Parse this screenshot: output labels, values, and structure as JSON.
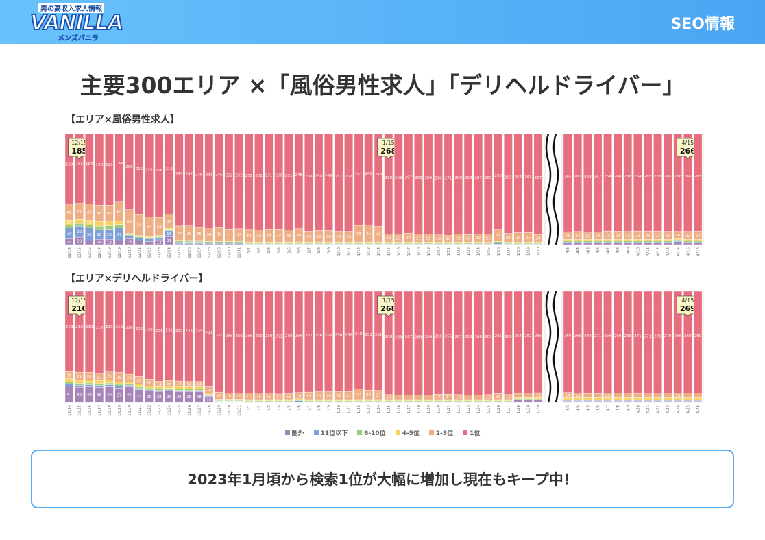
{
  "header": {
    "logo_tagline": "男の高収入求人情報",
    "logo_main": "VANILLA",
    "logo_sub": "メンズバニラ",
    "section": "SEO情報"
  },
  "title": "主要300エリア ×「風俗男性求人」「デリヘルドライバー」",
  "summary": "2023年1月頃から検索1位が大幅に増加し現在もキープ中！",
  "legend": [
    {
      "name": "圏外",
      "color": "#a784b8"
    },
    {
      "name": "11位以下",
      "color": "#7fa0d6"
    },
    {
      "name": "6-10位",
      "color": "#9fcb7c"
    },
    {
      "name": "4-5位",
      "color": "#f7d35e"
    },
    {
      "name": "2-3位",
      "color": "#eeaf86"
    },
    {
      "name": "1位",
      "color": "#e66e7e"
    }
  ],
  "chart_data": [
    {
      "type": "bar",
      "stacked": true,
      "title": "【エリア×風俗男性求人】",
      "grid": true,
      "categories_left": [
        "12/14",
        "12/15",
        "12/16",
        "12/17",
        "12/18",
        "12/19",
        "12/20",
        "12/21",
        "12/22",
        "12/23",
        "12/24",
        "12/25",
        "12/26",
        "12/27",
        "12/28",
        "12/29",
        "12/30",
        "12/31",
        "1/1",
        "1/2",
        "1/3",
        "1/4",
        "1/5",
        "1/6",
        "1/7",
        "1/8",
        "1/9",
        "1/10",
        "1/11",
        "1/12",
        "1/13",
        "1/14",
        "1/15",
        "1/16",
        "1/17",
        "1/18",
        "1/19",
        "1/20",
        "1/21",
        "1/22",
        "1/23",
        "1/24",
        "1/25",
        "1/26",
        "1/27",
        "1/28",
        "1/29",
        "1/30"
      ],
      "categories_right": [
        "4/3",
        "4/4",
        "4/5",
        "4/6",
        "4/7",
        "4/8",
        "4/9",
        "4/10",
        "4/11",
        "4/12",
        "4/13",
        "4/14",
        "4/15",
        "4/16"
      ],
      "series_left": [
        {
          "name": "圏外",
          "values": [
            15,
            20,
            10,
            14,
            13,
            11,
            16,
            10,
            8,
            13,
            21,
            2,
            2,
            2,
            2,
            2,
            2,
            2,
            1,
            1,
            1,
            1,
            1,
            1,
            1,
            1,
            1,
            1,
            1,
            1,
            1,
            1,
            1,
            1,
            1,
            1,
            1,
            1,
            1,
            1,
            1,
            1,
            1,
            1,
            1,
            1,
            1,
            1
          ]
        },
        {
          "name": "11位以下",
          "values": [
            30,
            29,
            35,
            26,
            28,
            37,
            8,
            8,
            8,
            6,
            16,
            5,
            4,
            4,
            3,
            3,
            2,
            2,
            1,
            1,
            1,
            1,
            1,
            1,
            1,
            1,
            1,
            1,
            1,
            1,
            1,
            1,
            1,
            1,
            1,
            1,
            1,
            1,
            1,
            1,
            1,
            1,
            1,
            4,
            1,
            1,
            1,
            1
          ]
        },
        {
          "name": "6-10位",
          "values": [
            7,
            7,
            7,
            9,
            9,
            9,
            3,
            3,
            3,
            3,
            3,
            3,
            3,
            3,
            3,
            3,
            4,
            4,
            3,
            3,
            3,
            3,
            3,
            3,
            3,
            3,
            3,
            3,
            3,
            3,
            3,
            3,
            3,
            3,
            3,
            3,
            3,
            3,
            3,
            3,
            3,
            3,
            3,
            3,
            3,
            3,
            3,
            3
          ]
        },
        {
          "name": "4-5位",
          "values": [
            13,
            11,
            13,
            12,
            12,
            10,
            3,
            3,
            3,
            3,
            3,
            3,
            2,
            2,
            2,
            2,
            2,
            2,
            2,
            2,
            2,
            2,
            2,
            2,
            2,
            2,
            2,
            2,
            2,
            2,
            2,
            2,
            2,
            2,
            2,
            2,
            2,
            2,
            2,
            2,
            2,
            2,
            2,
            2,
            2,
            2,
            2,
            2
          ]
        },
        {
          "name": "2-3位",
          "values": [
            41,
            43,
            43,
            44,
            43,
            54,
            65,
            56,
            53,
            49,
            37,
            39,
            38,
            35,
            34,
            36,
            31,
            32,
            33,
            32,
            34,
            34,
            32,
            36,
            28,
            30,
            30,
            28,
            28,
            43,
            45,
            41,
            22,
            21,
            24,
            21,
            21,
            19,
            18,
            21,
            20,
            22,
            21,
            31,
            23,
            25,
            25,
            20
          ]
        },
        {
          "name": "1位",
          "values": [
            189,
            185,
            187,
            190,
            190,
            194,
            205,
            215,
            223,
            226,
            213,
            259,
            242,
            246,
            247,
            245,
            252,
            252,
            251,
            251,
            251,
            250,
            251,
            246,
            256,
            254,
            256,
            257,
            257,
            241,
            240,
            243,
            268,
            269,
            267,
            268,
            269,
            270,
            271,
            268,
            268,
            267,
            268,
            256,
            265,
            264,
            263,
            267
          ]
        }
      ],
      "series_right": [
        {
          "name": "圏外",
          "values": [
            5,
            5,
            5,
            5,
            5,
            5,
            5,
            5,
            5,
            5,
            5,
            5,
            5,
            5
          ]
        },
        {
          "name": "11位以下",
          "values": [
            2,
            2,
            2,
            2,
            2,
            2,
            2,
            2,
            2,
            2,
            2,
            4,
            2,
            2
          ]
        },
        {
          "name": "6-10位",
          "values": [
            4,
            4,
            4,
            4,
            4,
            4,
            4,
            4,
            4,
            4,
            4,
            4,
            4,
            4
          ]
        },
        {
          "name": "4-5位",
          "values": [
            3,
            3,
            3,
            3,
            3,
            3,
            3,
            3,
            3,
            3,
            3,
            3,
            3,
            3
          ]
        },
        {
          "name": "2-3位",
          "values": [
            21,
            22,
            18,
            20,
            23,
            23,
            22,
            23,
            23,
            23,
            22,
            20,
            22,
            23
          ]
        },
        {
          "name": "1位",
          "values": [
            265,
            267,
            269,
            267,
            264,
            266,
            266,
            264,
            265,
            265,
            265,
            266,
            266,
            265
          ]
        }
      ],
      "callouts": [
        {
          "date": "12/15",
          "value": "185"
        },
        {
          "date": "1/15",
          "value": "268"
        },
        {
          "date": "4/15",
          "value": "266"
        }
      ]
    },
    {
      "type": "bar",
      "stacked": true,
      "title": "【エリア×デリヘルドライバー】",
      "grid": true,
      "categories_left": [
        "12/14",
        "12/15",
        "12/16",
        "12/17",
        "12/18",
        "12/19",
        "12/20",
        "12/21",
        "12/22",
        "12/23",
        "12/24",
        "12/25",
        "12/26",
        "12/27",
        "12/28",
        "12/29",
        "12/30",
        "12/31",
        "1/1",
        "1/2",
        "1/3",
        "1/4",
        "1/5",
        "1/6",
        "1/7",
        "1/8",
        "1/9",
        "1/10",
        "1/11",
        "1/12",
        "1/13",
        "1/14",
        "1/15",
        "1/16",
        "1/17",
        "1/18",
        "1/19",
        "1/20",
        "1/21",
        "1/22",
        "1/23",
        "1/24",
        "1/25",
        "1/26",
        "1/27",
        "1/28",
        "1/29",
        "1/30"
      ],
      "categories_right": [
        "4/3",
        "4/4",
        "4/5",
        "4/6",
        "4/7",
        "4/8",
        "4/9",
        "4/10",
        "4/11",
        "4/12",
        "4/13",
        "4/14",
        "4/15",
        "4/16"
      ],
      "series_left": [
        {
          "name": "圏外",
          "values": [
            42,
            39,
            40,
            38,
            40,
            37,
            41,
            33,
            29,
            28,
            29,
            28,
            28,
            28,
            15,
            2,
            2,
            2,
            1,
            1,
            1,
            1,
            1,
            1,
            1,
            1,
            1,
            1,
            1,
            1,
            1,
            1,
            1,
            1,
            1,
            1,
            1,
            1,
            1,
            1,
            1,
            1,
            1,
            1,
            1,
            6,
            6,
            6
          ]
        },
        {
          "name": "11位以下",
          "values": [
            5,
            5,
            5,
            5,
            5,
            5,
            4,
            3,
            3,
            3,
            3,
            3,
            3,
            3,
            2,
            1,
            1,
            1,
            1,
            1,
            1,
            1,
            1,
            3,
            1,
            1,
            1,
            1,
            1,
            1,
            1,
            1,
            1,
            1,
            1,
            1,
            1,
            1,
            1,
            1,
            1,
            1,
            1,
            1,
            1,
            1,
            1,
            1
          ]
        },
        {
          "name": "6-10位",
          "values": [
            5,
            5,
            5,
            5,
            5,
            5,
            4,
            4,
            5,
            4,
            4,
            4,
            4,
            4,
            3,
            2,
            2,
            2,
            2,
            2,
            2,
            2,
            2,
            2,
            2,
            2,
            2,
            2,
            2,
            2,
            2,
            2,
            2,
            2,
            2,
            2,
            2,
            2,
            2,
            2,
            2,
            2,
            2,
            2,
            2,
            2,
            2,
            2
          ]
        },
        {
          "name": "4-5位",
          "values": [
            9,
            8,
            8,
            8,
            8,
            6,
            5,
            7,
            5,
            5,
            5,
            6,
            5,
            5,
            4,
            3,
            3,
            3,
            3,
            3,
            3,
            3,
            3,
            3,
            3,
            3,
            3,
            3,
            3,
            3,
            3,
            3,
            3,
            3,
            3,
            3,
            3,
            3,
            3,
            3,
            3,
            3,
            3,
            3,
            3,
            3,
            3,
            3
          ]
        },
        {
          "name": "2-3位",
          "values": [
            18,
            21,
            20,
            17,
            21,
            26,
            20,
            20,
            18,
            14,
            15,
            14,
            14,
            14,
            16,
            18,
            16,
            15,
            17,
            16,
            16,
            14,
            15,
            16,
            19,
            20,
            20,
            21,
            21,
            27,
            24,
            23,
            13,
            11,
            12,
            11,
            12,
            14,
            14,
            13,
            12,
            12,
            13,
            15,
            13,
            11,
            12,
            13
          ]
        },
        {
          "name": "1位",
          "values": [
            208,
            210,
            210,
            213,
            210,
            213,
            219,
            222,
            228,
            231,
            231,
            233,
            235,
            235,
            247,
            257,
            259,
            260,
            258,
            260,
            260,
            261,
            260,
            258,
            257,
            256,
            256,
            256,
            256,
            248,
            251,
            251,
            268,
            269,
            267,
            269,
            269,
            266,
            266,
            267,
            268,
            268,
            267,
            261,
            266,
            264,
            262,
            265
          ]
        }
      ],
      "series_right": [
        {
          "name": "圏外",
          "values": [
            3,
            3,
            3,
            3,
            3,
            3,
            3,
            3,
            3,
            3,
            3,
            3,
            3,
            3
          ]
        },
        {
          "name": "11位以下",
          "values": [
            2,
            2,
            2,
            2,
            2,
            2,
            2,
            2,
            2,
            2,
            2,
            2,
            2,
            2
          ]
        },
        {
          "name": "6-10位",
          "values": [
            2,
            2,
            2,
            2,
            2,
            2,
            2,
            2,
            2,
            2,
            2,
            2,
            2,
            2
          ]
        },
        {
          "name": "4-5位",
          "values": [
            5,
            5,
            5,
            5,
            5,
            5,
            5,
            5,
            5,
            5,
            5,
            5,
            5,
            5
          ]
        },
        {
          "name": "2-3位",
          "values": [
            14,
            13,
            11,
            11,
            13,
            12,
            12,
            11,
            10,
            10,
            12,
            13,
            12,
            12
          ]
        },
        {
          "name": "1位",
          "values": [
            268,
            269,
            270,
            271,
            269,
            269,
            268,
            271,
            271,
            271,
            270,
            269,
            269,
            269
          ]
        }
      ],
      "callouts": [
        {
          "date": "12/15",
          "value": "210"
        },
        {
          "date": "1/15",
          "value": "268"
        },
        {
          "date": "4/15",
          "value": "269"
        }
      ]
    }
  ]
}
